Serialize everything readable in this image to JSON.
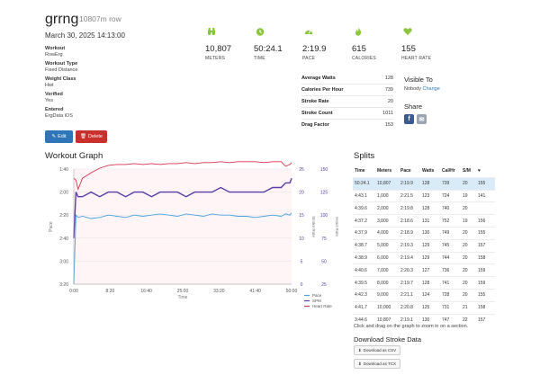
{
  "workout": {
    "title": "grrng",
    "subtitle": "10807m row",
    "date": "March 30, 2025 14:13:00",
    "fields": [
      {
        "label": "Workout",
        "value": "RowErg"
      },
      {
        "label": "Workout Type",
        "value": "Fixed Distance"
      },
      {
        "label": "Weight Class",
        "value": "Hwt"
      },
      {
        "label": "Verified",
        "value": "Yes"
      },
      {
        "label": "Entered",
        "value": "ErgData iOS"
      }
    ],
    "edit_label": "Edit",
    "delete_label": "Delete"
  },
  "stats": [
    {
      "icon": "binoculars-icon",
      "value": "10,807",
      "caption": "METERS"
    },
    {
      "icon": "stopwatch-icon",
      "value": "50:24.1",
      "caption": "TIME"
    },
    {
      "icon": "speedometer-icon",
      "value": "2:19.9",
      "caption": "PACE"
    },
    {
      "icon": "flame-icon",
      "value": "615",
      "caption": "CALORIES"
    },
    {
      "icon": "heart-icon",
      "value": "155",
      "caption": "HEART RATE"
    }
  ],
  "workout_metrics": [
    {
      "label": "Average Watts",
      "value": "128"
    },
    {
      "label": "Calories Per Hour",
      "value": "739"
    },
    {
      "label": "Stroke Rate",
      "value": "20"
    },
    {
      "label": "Stroke Count",
      "value": "1011"
    },
    {
      "label": "Drag Factor",
      "value": "153"
    }
  ],
  "visibility": {
    "heading": "Visible To",
    "value": "Nobody",
    "change_label": "Change",
    "share_heading": "Share",
    "facebook_glyph": "f",
    "email_glyph": "✉"
  },
  "graph": {
    "heading": "Workout Graph"
  },
  "splits": {
    "heading": "Splits",
    "columns": [
      "Time",
      "Meters",
      "Pace",
      "Watts",
      "Cal/Hr",
      "S/M",
      "♥"
    ],
    "rows": [
      [
        "50:24.1",
        "10,807",
        "2:19.9",
        "128",
        "739",
        "20",
        "155"
      ],
      [
        "4:43.1",
        "1,000",
        "2:21.5",
        "123",
        "724",
        "19",
        "141"
      ],
      [
        "4:39.6",
        "2,000",
        "2:19.8",
        "128",
        "740",
        "20",
        ""
      ],
      [
        "4:37.2",
        "3,000",
        "2:18.6",
        "131",
        "752",
        "19",
        "156"
      ],
      [
        "4:37.9",
        "4,000",
        "2:18.9",
        "130",
        "749",
        "20",
        "155"
      ],
      [
        "4:38.7",
        "5,000",
        "2:19.3",
        "129",
        "745",
        "20",
        "157"
      ],
      [
        "4:38.9",
        "6,000",
        "2:19.4",
        "129",
        "744",
        "20",
        "158"
      ],
      [
        "4:40.6",
        "7,000",
        "2:20.3",
        "127",
        "736",
        "20",
        "159"
      ],
      [
        "4:39.5",
        "8,000",
        "2:19.7",
        "128",
        "741",
        "20",
        "159"
      ],
      [
        "4:42.3",
        "9,000",
        "2:21.1",
        "124",
        "728",
        "20",
        "155"
      ],
      [
        "4:41.7",
        "10,000",
        "2:20.8",
        "125",
        "731",
        "21",
        "158"
      ],
      [
        "3:44.6",
        "10,807",
        "2:19.1",
        "130",
        "747",
        "22",
        "157"
      ]
    ],
    "click_note": "Click and drag on the graph to zoom in on a section.",
    "download_heading": "Download Stroke Data",
    "csv_label": "Download as CSV",
    "tcx_label": "Download as TCX"
  },
  "chart_data": {
    "type": "line",
    "x_ticks": [
      "0:00",
      "8:20",
      "16:40",
      "25:00",
      "33:20",
      "41:40",
      "50:00"
    ],
    "x_range_seconds": [
      0,
      3024
    ],
    "xlabel": "Time",
    "y_left_ticks": [
      "1:40",
      "2:00",
      "2:20",
      "2:40",
      "3:00",
      "3:20"
    ],
    "y_left_label": "Pace",
    "y_left_range_seconds": [
      100,
      200
    ],
    "y_spm_ticks": [
      "25",
      "20",
      "15",
      "10",
      "5",
      "0"
    ],
    "y_spm_label": "Stroke Rate",
    "y_spm_range": [
      0,
      25
    ],
    "y_hr_ticks": [
      "150",
      "125",
      "100",
      "75",
      "50",
      "25"
    ],
    "y_hr_label": "Heart Rate",
    "y_hr_range": [
      25,
      150
    ],
    "colors": {
      "pace": "#4aa3df",
      "spm": "#5b3da8",
      "hr": "#d9334f"
    },
    "series": [
      {
        "name": "Pace",
        "x": [
          0,
          30,
          60,
          120,
          240,
          360,
          480,
          600,
          720,
          840,
          960,
          1080,
          1200,
          1320,
          1440,
          1560,
          1680,
          1800,
          1920,
          2040,
          2160,
          2280,
          2400,
          2520,
          2640,
          2760,
          2880,
          2940,
          3000,
          3024
        ],
        "y": [
          200,
          140,
          142,
          141,
          143,
          142,
          140,
          141,
          142,
          140,
          141,
          140,
          139,
          140,
          141,
          139,
          140,
          141,
          139,
          140,
          140,
          141,
          141,
          142,
          141,
          140,
          141,
          139,
          140,
          138
        ]
      },
      {
        "name": "SPM",
        "x": [
          0,
          30,
          60,
          120,
          240,
          360,
          480,
          600,
          720,
          840,
          960,
          1080,
          1200,
          1320,
          1440,
          1560,
          1680,
          1800,
          1920,
          2040,
          2160,
          2280,
          2400,
          2520,
          2640,
          2760,
          2880,
          2940,
          3000,
          3024
        ],
        "y": [
          10,
          20,
          19,
          19,
          20,
          19,
          20,
          20,
          19,
          20,
          20,
          19,
          20,
          20,
          20,
          19,
          20,
          20,
          20,
          21,
          20,
          20,
          20,
          20,
          20,
          21,
          21,
          22,
          22,
          23
        ]
      },
      {
        "name": "Heart Rate",
        "x": [
          0,
          30,
          60,
          120,
          240,
          360,
          480,
          600,
          720,
          840,
          960,
          1080,
          1200,
          1320,
          1440,
          1560,
          1680,
          1800,
          1920,
          2040,
          2160,
          2280,
          2400,
          2520,
          2640,
          2760,
          2880,
          2940,
          3000,
          3024
        ],
        "y": [
          140,
          138,
          128,
          140,
          146,
          151,
          154,
          155,
          155,
          156,
          155,
          156,
          155,
          156,
          156,
          157,
          156,
          157,
          157,
          158,
          157,
          158,
          158,
          158,
          157,
          158,
          158,
          153,
          155,
          157
        ]
      }
    ],
    "legend": [
      "Pace",
      "SPM",
      "Heart Rate"
    ],
    "legend_position": "bottom-right"
  }
}
